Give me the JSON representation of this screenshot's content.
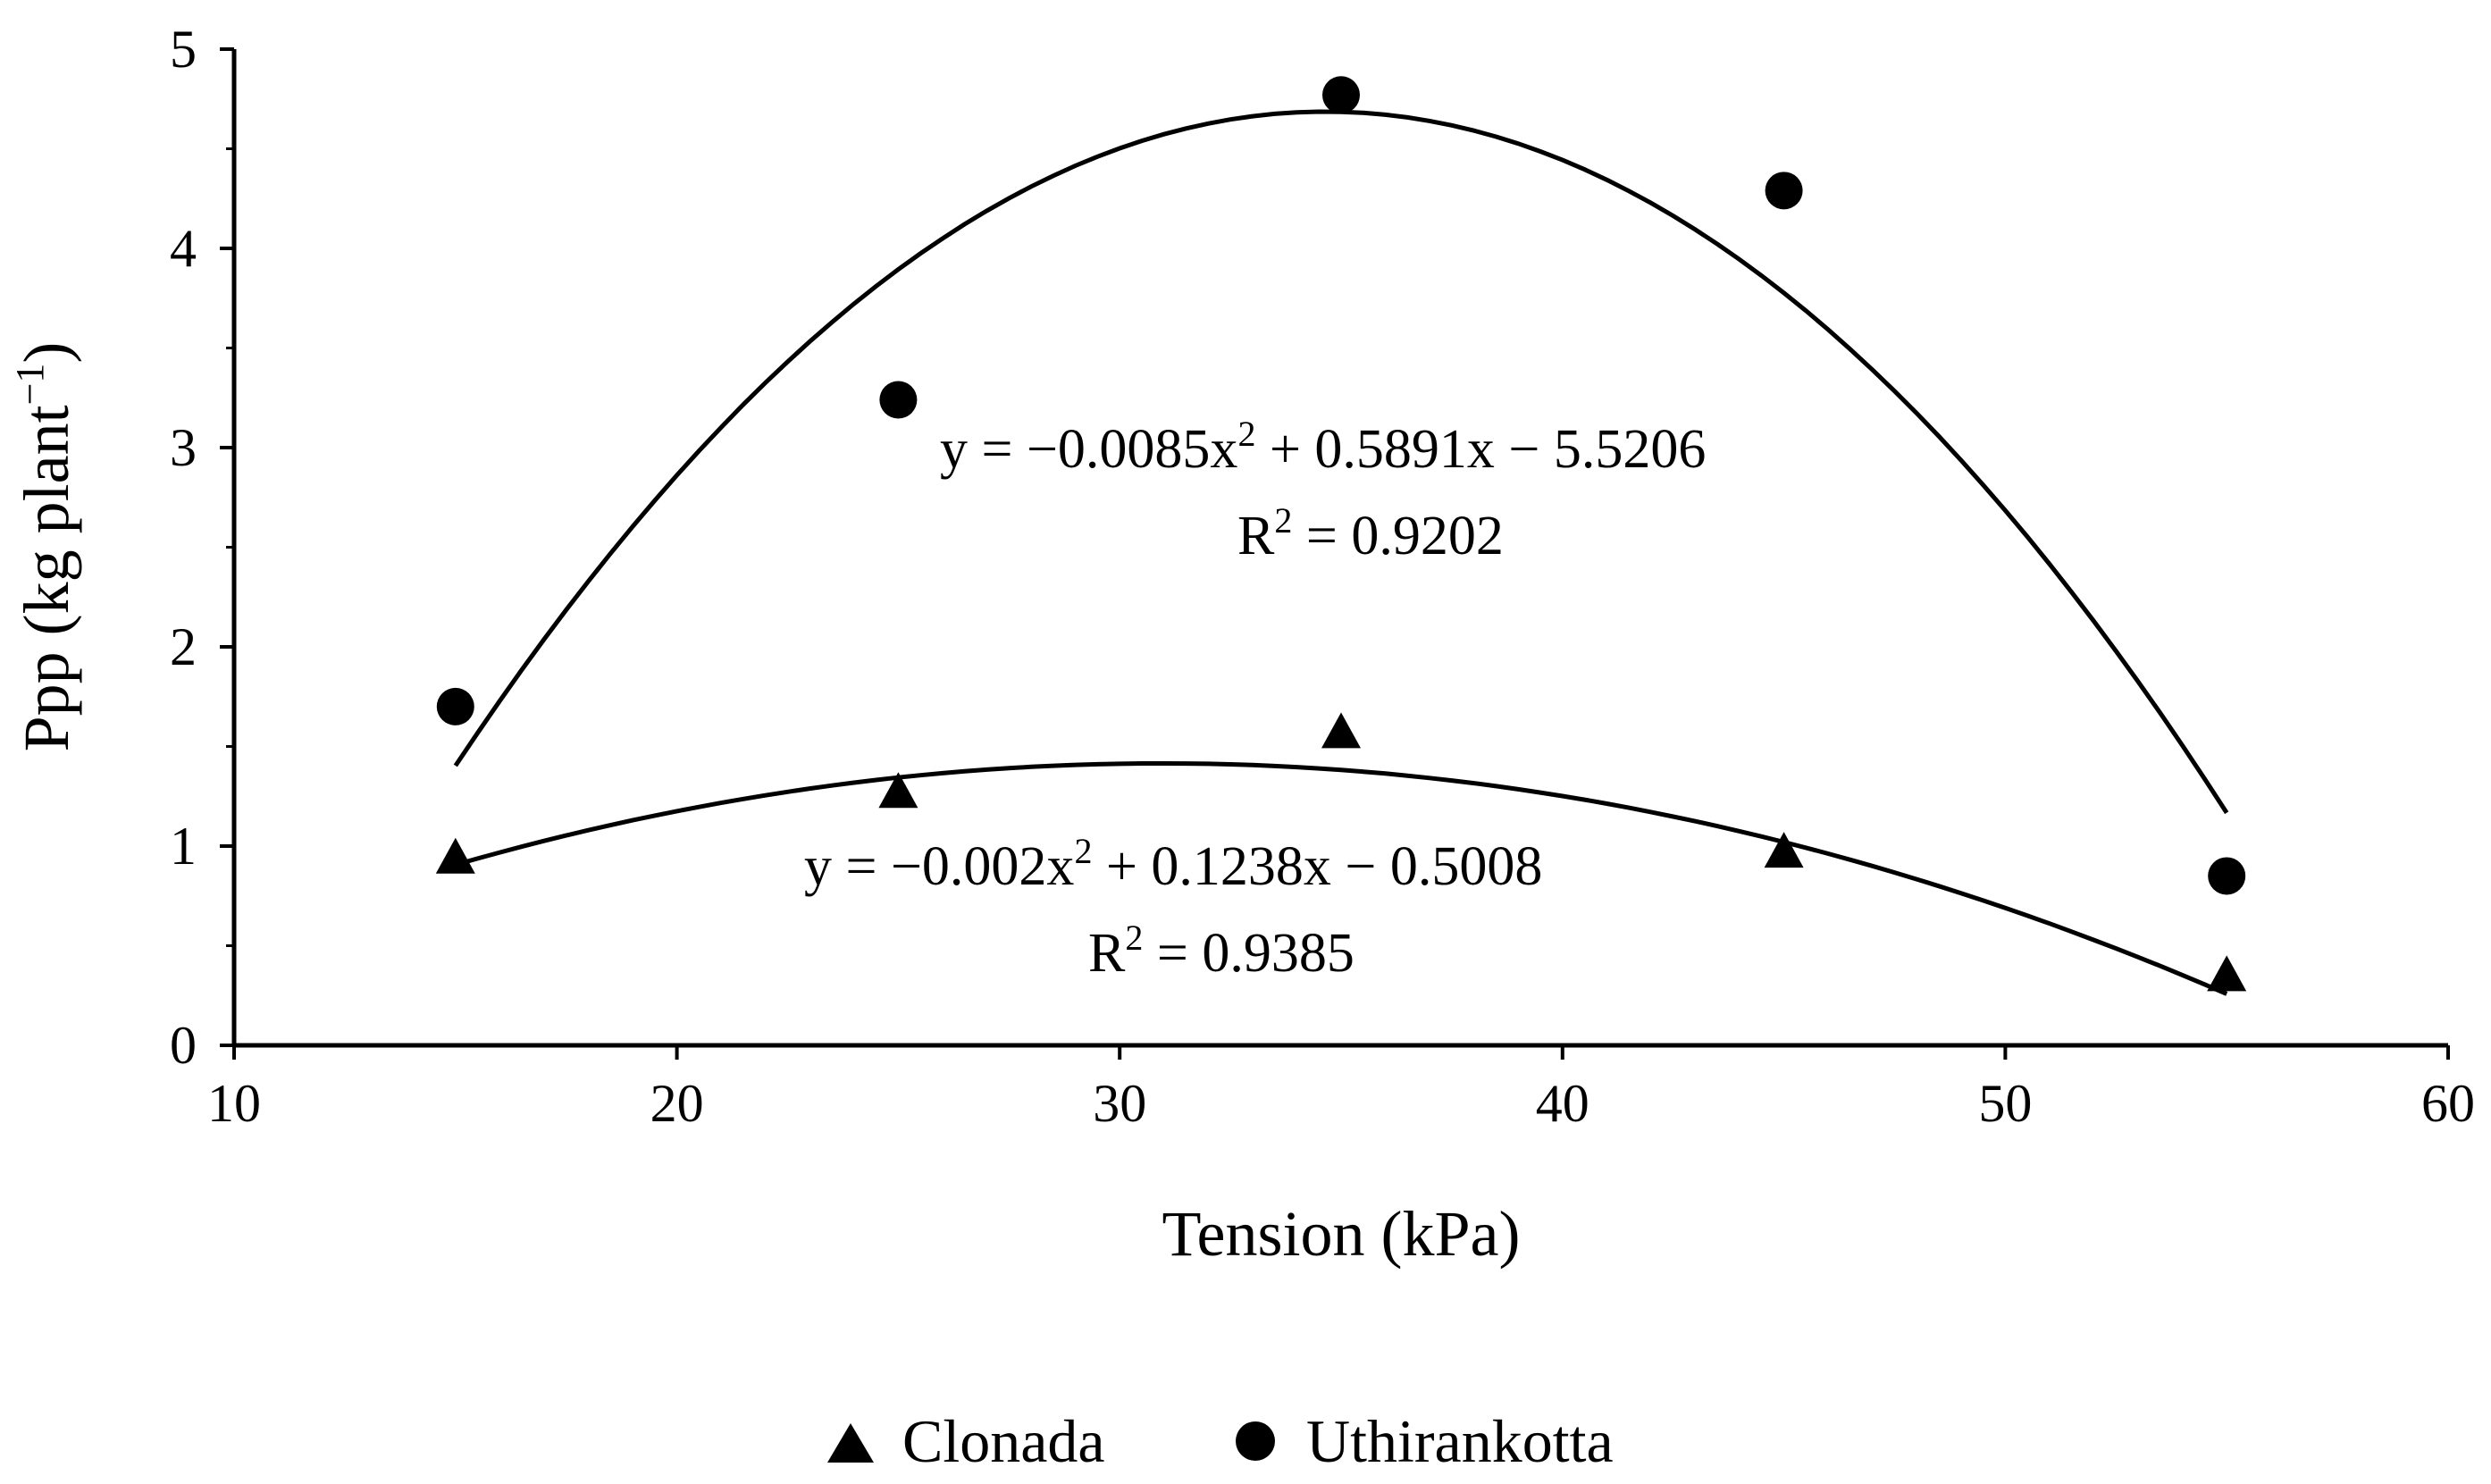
{
  "chart_data": {
    "type": "scatter",
    "xlabel": "Tension (kPa)",
    "ylabel": "Ppp (kg plant",
    "ylabel_sup": "−1",
    "ylabel_close": ")",
    "xlim": [
      10,
      60
    ],
    "ylim": [
      0,
      5
    ],
    "x_ticks": [
      10,
      20,
      30,
      40,
      50,
      60
    ],
    "y_ticks": [
      0,
      1,
      2,
      3,
      4,
      5
    ],
    "grid": false,
    "legend_position": "bottom",
    "series": [
      {
        "name": "Clonada",
        "marker": "triangle",
        "x": [
          15,
          25,
          35,
          45,
          55
        ],
        "y": [
          0.93,
          1.26,
          1.56,
          0.96,
          0.34
        ],
        "trendline": {
          "type": "polynomial-2",
          "coefficients": [
            -0.002,
            0.1238,
            -0.5008
          ],
          "x_range": [
            15,
            55
          ],
          "equation_prefix": "y = −0.002x",
          "equation_suffix": " + 0.1238x − 0.5008",
          "r2_prefix": "R",
          "r2_suffix": " = 0.9385"
        }
      },
      {
        "name": "Uthirankotta",
        "marker": "circle",
        "x": [
          15,
          25,
          35,
          45,
          55
        ],
        "y": [
          1.7,
          3.24,
          4.77,
          4.29,
          0.85
        ],
        "trendline": {
          "type": "polynomial-2",
          "coefficients": [
            -0.0085,
            0.5891,
            -5.5206
          ],
          "x_range": [
            15,
            55
          ],
          "equation_prefix": "y = −0.0085x",
          "equation_suffix": " + 0.5891x − 5.5206",
          "r2_prefix": "R",
          "r2_suffix": " = 0.9202"
        }
      }
    ],
    "colors": {
      "marks": "#000000",
      "background": "#ffffff"
    }
  }
}
